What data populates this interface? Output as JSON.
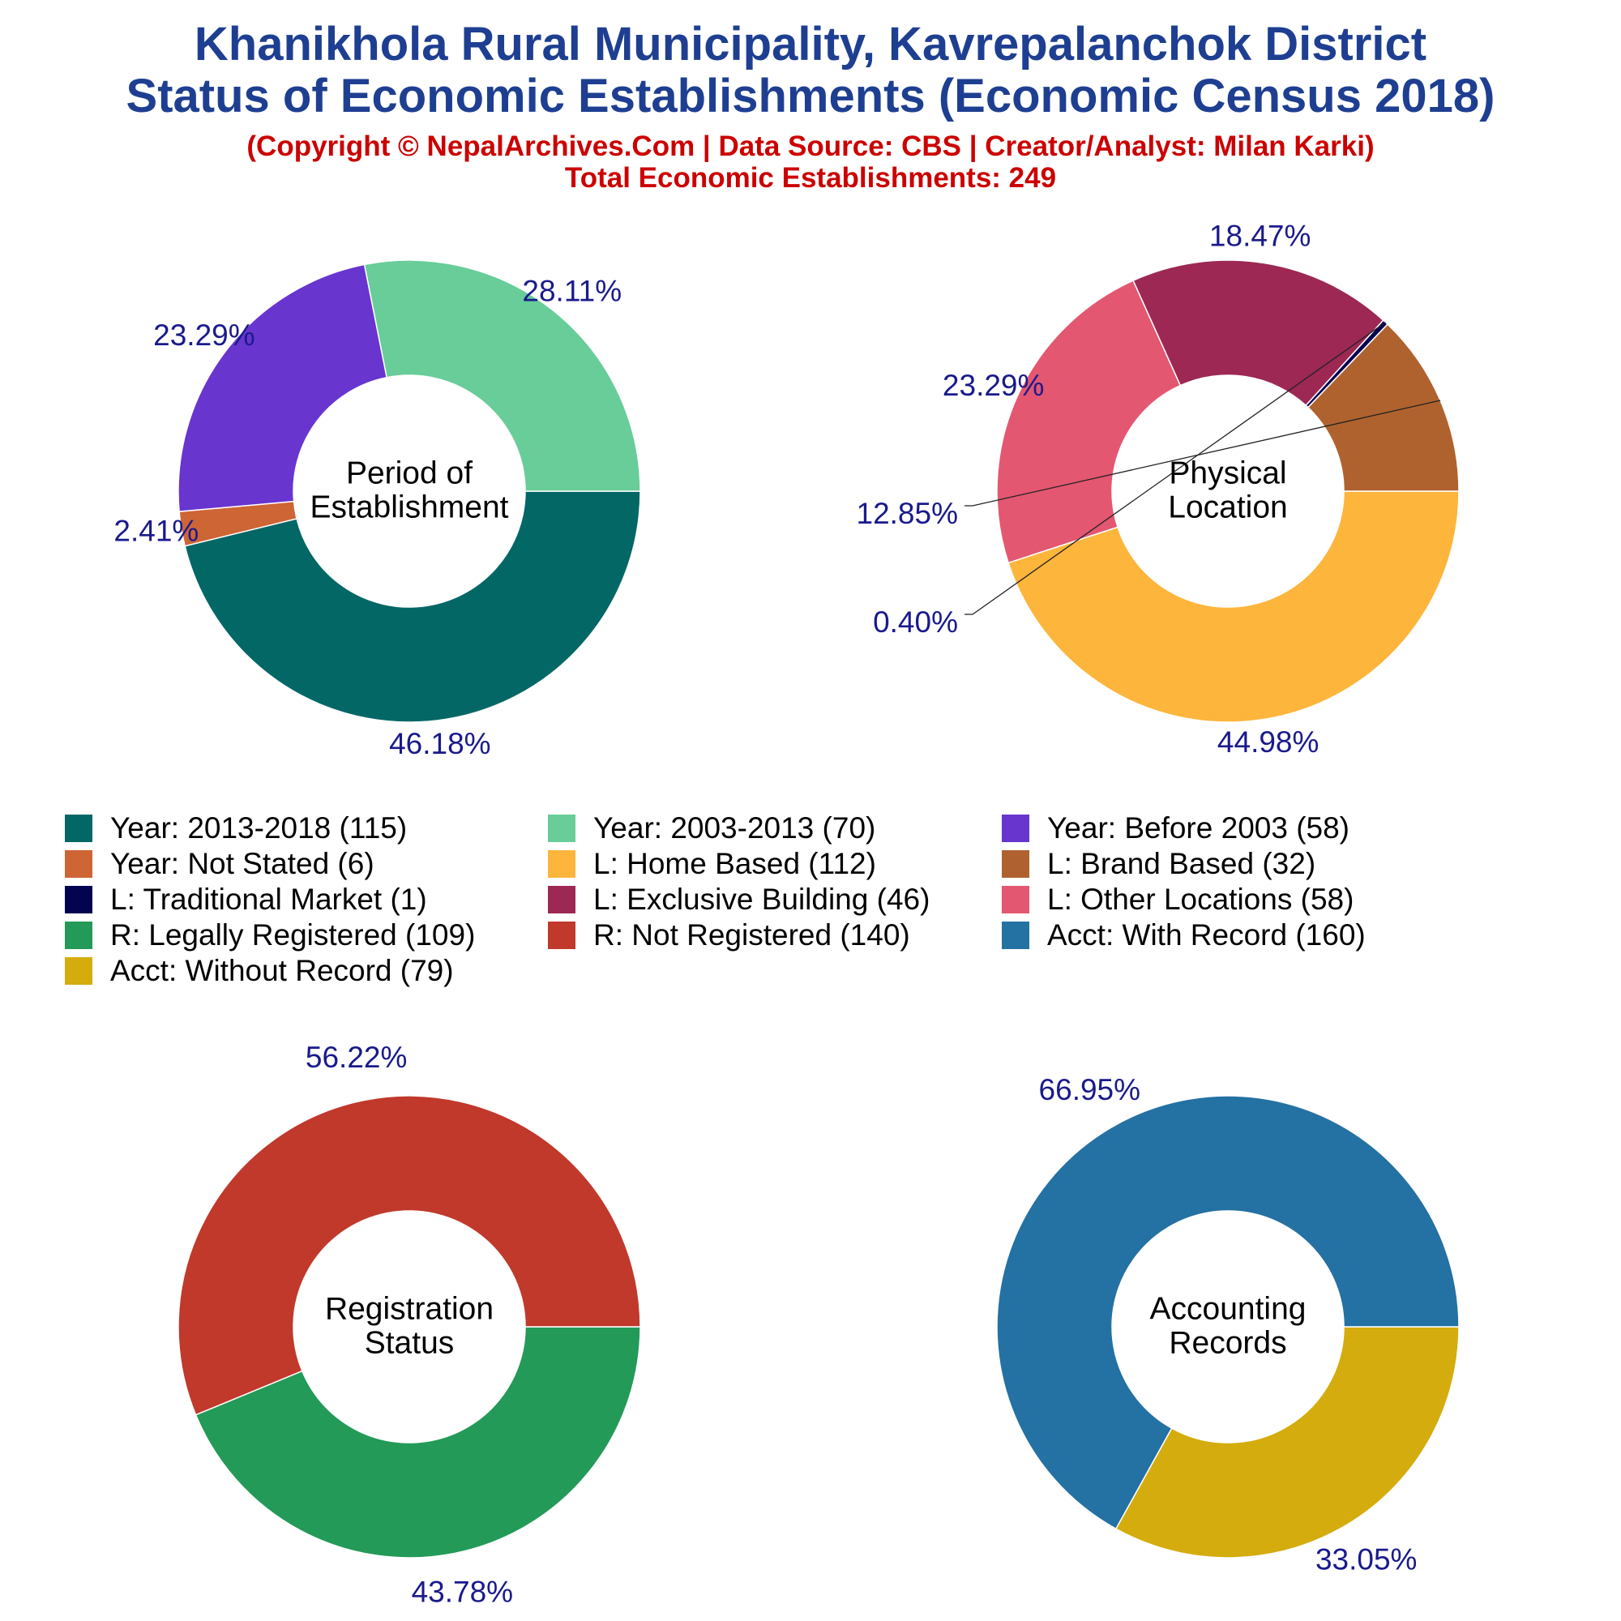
{
  "title_lines": [
    "Khanikhola Rural Municipality, Kavrepalanchok District",
    "Status of Economic Establishments (Economic Census 2018)"
  ],
  "subtitle": "(Copyright © NepalArchives.Com | Data Source: CBS | Creator/Analyst: Milan Karki)",
  "total_text": "Total Economic Establishments: 249",
  "colors": {
    "title": "#1e3f91",
    "subtitle": "#cc0000",
    "pct_label": "#1a1a8c"
  },
  "legend": [
    {
      "label": "Year: 2013-2018 (115)",
      "color": "#036766"
    },
    {
      "label": "Year: 2003-2013 (70)",
      "color": "#68cd98"
    },
    {
      "label": "Year: Before 2003 (58)",
      "color": "#6835cf"
    },
    {
      "label": "Year: Not Stated (6)",
      "color": "#cd6535"
    },
    {
      "label": "L: Home Based (112)",
      "color": "#fdb53c"
    },
    {
      "label": "L: Brand Based (32)",
      "color": "#b0622e"
    },
    {
      "label": "L: Traditional Market (1)",
      "color": "#03034f"
    },
    {
      "label": "L: Exclusive Building (46)",
      "color": "#9d2854"
    },
    {
      "label": "L: Other Locations (58)",
      "color": "#e45770"
    },
    {
      "label": "R: Legally Registered (109)",
      "color": "#239a58"
    },
    {
      "label": "R: Not Registered (140)",
      "color": "#c0392b"
    },
    {
      "label": "Acct: With Record (160)",
      "color": "#2471a3"
    },
    {
      "label": "Acct: Without Record (79)",
      "color": "#d4ac0d"
    }
  ],
  "chart_data": [
    {
      "type": "pie",
      "center_label_lines": [
        "Period of",
        "Establishment"
      ],
      "slices": [
        {
          "category": "Year: 2013-2018",
          "value": 115,
          "pct_label": "46.18%",
          "color": "#036766"
        },
        {
          "category": "Year: Not Stated",
          "value": 6,
          "pct_label": "2.41%",
          "color": "#cd6535"
        },
        {
          "category": "Year: Before 2003",
          "value": 58,
          "pct_label": "23.29%",
          "color": "#6835cf"
        },
        {
          "category": "Year: 2003-2013",
          "value": 70,
          "pct_label": "28.11%",
          "color": "#68cd98"
        }
      ]
    },
    {
      "type": "pie",
      "center_label_lines": [
        "Physical",
        "Location"
      ],
      "slices": [
        {
          "category": "L: Home Based",
          "value": 112,
          "pct_label": "44.98%",
          "color": "#fdb53c"
        },
        {
          "category": "L: Other Locations",
          "value": 58,
          "pct_label": "23.29%",
          "color": "#e45770"
        },
        {
          "category": "L: Exclusive Building",
          "value": 46,
          "pct_label": "18.47%",
          "color": "#9d2854"
        },
        {
          "category": "L: Traditional Market",
          "value": 1,
          "pct_label": "0.40%",
          "color": "#03034f"
        },
        {
          "category": "L: Brand Based",
          "value": 32,
          "pct_label": "12.85%",
          "color": "#b0622e"
        }
      ]
    },
    {
      "type": "pie",
      "center_label_lines": [
        "Registration",
        "Status"
      ],
      "slices": [
        {
          "category": "R: Legally Registered",
          "value": 109,
          "pct_label": "43.78%",
          "color": "#239a58"
        },
        {
          "category": "R: Not Registered",
          "value": 140,
          "pct_label": "56.22%",
          "color": "#c0392b"
        }
      ]
    },
    {
      "type": "pie",
      "center_label_lines": [
        "Accounting",
        "Records"
      ],
      "slices": [
        {
          "category": "Acct: Without Record",
          "value": 79,
          "pct_label": "33.05%",
          "color": "#d4ac0d"
        },
        {
          "category": "Acct: With Record",
          "value": 160,
          "pct_label": "66.95%",
          "color": "#2471a3"
        }
      ]
    }
  ]
}
